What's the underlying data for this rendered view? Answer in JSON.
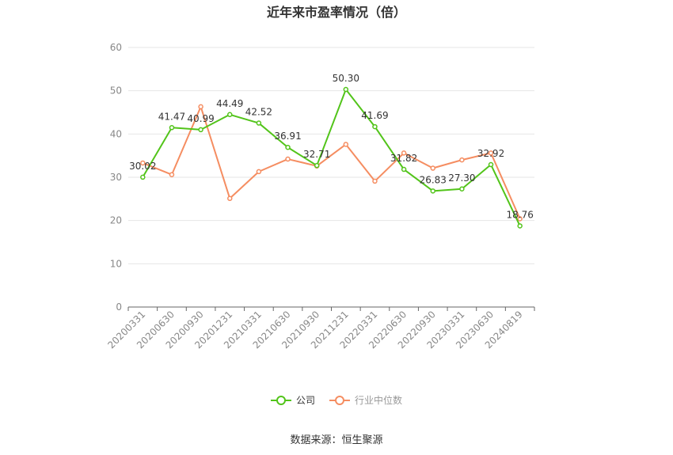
{
  "chart_data": {
    "type": "line",
    "title": "近年来市盈率情况（倍）",
    "categories": [
      "20200331",
      "20200630",
      "20200930",
      "20201231",
      "20210331",
      "20210630",
      "20210930",
      "20211231",
      "20220331",
      "20220630",
      "20220930",
      "20230331",
      "20230630",
      "20240819"
    ],
    "series": [
      {
        "name": "公司",
        "color": "#52c41a",
        "values": [
          30.02,
          41.47,
          40.99,
          44.49,
          42.52,
          36.91,
          32.71,
          50.3,
          41.69,
          31.82,
          26.83,
          27.3,
          32.92,
          18.76
        ],
        "labels_shown": true
      },
      {
        "name": "行业中位数",
        "color": "#f58d61",
        "values": [
          33.3,
          30.6,
          46.3,
          25.1,
          31.3,
          34.2,
          32.6,
          37.6,
          29.1,
          35.6,
          32.1,
          34.0,
          35.6,
          20.4
        ],
        "labels_shown": false
      }
    ],
    "ylim": [
      0,
      60
    ],
    "yticks": [
      0,
      10,
      20,
      30,
      40,
      50,
      60
    ],
    "grid": true,
    "legend_position": "bottom"
  },
  "source": "数据来源：恒生聚源"
}
